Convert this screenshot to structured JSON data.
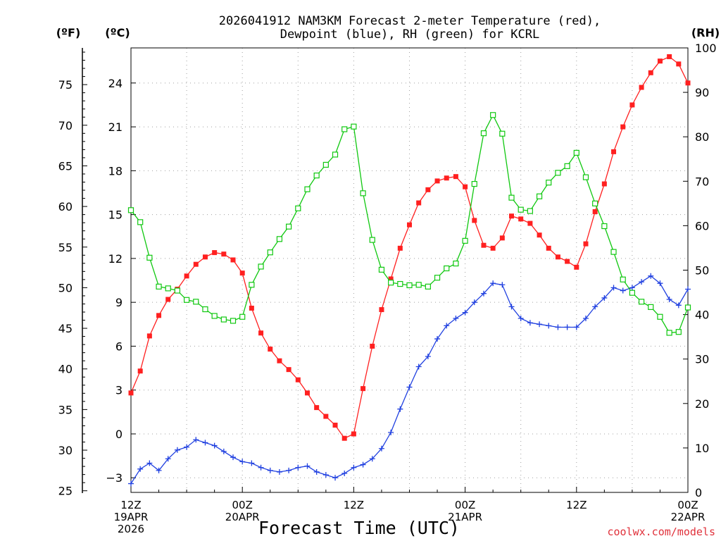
{
  "colors": {
    "temperature": "#ff2020",
    "dewpoint": "#2040e0",
    "rh": "#10c810",
    "credit": "#e0303a",
    "grid": "#a0a0a0"
  },
  "chart_data": {
    "type": "line",
    "title_line1": "2026041912 NAM3KM Forecast 2-meter Temperature (red),",
    "title_line2": "Dewpoint (blue), RH (green) for KCRL",
    "xlabel": "Forecast Time (UTC)",
    "credit": "coolwx.com/models",
    "unit_f": "(ºF)",
    "unit_c": "(ºC)",
    "unit_rh": "(RH)",
    "x_hours_range": [
      0,
      60
    ],
    "c_range": [
      -4,
      26.4
    ],
    "rh_range": [
      0,
      100
    ],
    "f_ticks": [
      25,
      30,
      35,
      40,
      45,
      50,
      55,
      60,
      65,
      70,
      75
    ],
    "c_ticks": [
      -3,
      0,
      3,
      6,
      9,
      12,
      15,
      18,
      21,
      24
    ],
    "rh_ticks": [
      0,
      10,
      20,
      30,
      40,
      50,
      60,
      70,
      80,
      90,
      100
    ],
    "x_ticks": [
      {
        "hour": 0,
        "lines": [
          "12Z",
          "19APR",
          "2026"
        ]
      },
      {
        "hour": 12,
        "lines": [
          "00Z",
          "20APR"
        ]
      },
      {
        "hour": 24,
        "lines": [
          "12Z"
        ]
      },
      {
        "hour": 36,
        "lines": [
          "00Z",
          "21APR"
        ]
      },
      {
        "hour": 48,
        "lines": [
          "12Z"
        ]
      },
      {
        "hour": 60,
        "lines": [
          "00Z",
          "22APR"
        ]
      }
    ],
    "series": [
      {
        "name": "Temperature (°C)",
        "color": "#ff2020",
        "marker": "filled-square",
        "axis": "c",
        "x": [
          0,
          1,
          2,
          3,
          4,
          5,
          6,
          7,
          8,
          9,
          10,
          11,
          12,
          13,
          14,
          15,
          16,
          17,
          18,
          19,
          20,
          21,
          22,
          23,
          24,
          25,
          26,
          27,
          28,
          29,
          30,
          31,
          32,
          33,
          34,
          35,
          36,
          37,
          38,
          39,
          40,
          41,
          42,
          43,
          44,
          45,
          46,
          47,
          48,
          49,
          50,
          51,
          52,
          53,
          54,
          55,
          56,
          57,
          58,
          59,
          60
        ],
        "values": [
          2.8,
          4.3,
          6.7,
          8.1,
          9.2,
          9.9,
          10.8,
          11.6,
          12.1,
          12.4,
          12.3,
          11.9,
          11.0,
          8.6,
          6.9,
          5.8,
          5.0,
          4.4,
          3.7,
          2.8,
          1.8,
          1.2,
          0.6,
          -0.3,
          0.0,
          3.1,
          6.0,
          8.5,
          10.6,
          12.7,
          14.3,
          15.8,
          16.7,
          17.3,
          17.5,
          17.6,
          16.9,
          14.6,
          12.9,
          12.7,
          13.4,
          14.9,
          14.7,
          14.4,
          13.6,
          12.7,
          12.1,
          11.8,
          11.4,
          13.0,
          15.2,
          17.1,
          19.3,
          21.0,
          22.5,
          23.7,
          24.7,
          25.5,
          25.8,
          25.3,
          24.0
        ]
      },
      {
        "name": "Dewpoint (°C)",
        "color": "#2040e0",
        "marker": "plus",
        "axis": "c",
        "x": [
          0,
          1,
          2,
          3,
          4,
          5,
          6,
          7,
          8,
          9,
          10,
          11,
          12,
          13,
          14,
          15,
          16,
          17,
          18,
          19,
          20,
          21,
          22,
          23,
          24,
          25,
          26,
          27,
          28,
          29,
          30,
          31,
          32,
          33,
          34,
          35,
          36,
          37,
          38,
          39,
          40,
          41,
          42,
          43,
          44,
          45,
          46,
          47,
          48,
          49,
          50,
          51,
          52,
          53,
          54,
          55,
          56,
          57,
          58,
          59,
          60
        ],
        "values": [
          -3.4,
          -2.4,
          -2.0,
          -2.5,
          -1.7,
          -1.1,
          -0.9,
          -0.4,
          -0.6,
          -0.8,
          -1.2,
          -1.6,
          -1.9,
          -2.0,
          -2.3,
          -2.5,
          -2.6,
          -2.5,
          -2.3,
          -2.2,
          -2.6,
          -2.8,
          -3.0,
          -2.7,
          -2.3,
          -2.1,
          -1.7,
          -1.0,
          0.1,
          1.7,
          3.2,
          4.6,
          5.3,
          6.5,
          7.4,
          7.9,
          8.3,
          9.0,
          9.6,
          10.3,
          10.2,
          8.7,
          7.9,
          7.6,
          7.5,
          7.4,
          7.3,
          7.3,
          7.3,
          7.9,
          8.7,
          9.3,
          10.0,
          9.8,
          10.0,
          10.4,
          10.8,
          10.3,
          9.2,
          8.8,
          9.9
        ]
      },
      {
        "name": "RH (%)",
        "color": "#10c810",
        "marker": "open-square",
        "axis": "rh",
        "x": [
          0,
          1,
          2,
          3,
          4,
          5,
          6,
          7,
          8,
          9,
          10,
          11,
          12,
          13,
          14,
          15,
          16,
          17,
          18,
          19,
          20,
          21,
          22,
          23,
          24,
          25,
          26,
          27,
          28,
          29,
          30,
          31,
          32,
          33,
          34,
          35,
          36,
          37,
          38,
          39,
          40,
          41,
          42,
          43,
          44,
          45,
          46,
          47,
          48,
          49,
          50,
          51,
          52,
          53,
          54,
          55,
          56,
          57,
          58,
          59,
          60
        ],
        "values": [
          63.5,
          60.8,
          52.8,
          46.3,
          45.9,
          45.4,
          43.3,
          42.9,
          41.2,
          39.7,
          38.9,
          38.6,
          39.5,
          46.7,
          50.8,
          54.0,
          57.0,
          59.8,
          63.9,
          68.2,
          71.3,
          73.7,
          76.0,
          81.7,
          82.3,
          67.3,
          56.8,
          50.1,
          47.2,
          46.9,
          46.6,
          46.7,
          46.3,
          48.3,
          50.4,
          51.5,
          56.6,
          69.4,
          80.8,
          84.9,
          80.7,
          66.3,
          63.6,
          63.3,
          66.6,
          69.7,
          71.9,
          73.4,
          76.4,
          70.9,
          65.0,
          59.9,
          54.1,
          47.9,
          44.9,
          42.9,
          41.7,
          39.5,
          35.9,
          36.1,
          41.6
        ]
      }
    ]
  }
}
